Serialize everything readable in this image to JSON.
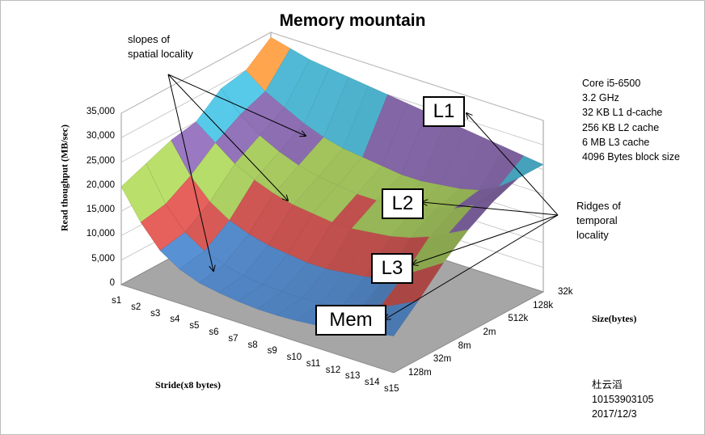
{
  "chart_data": {
    "type": "surface",
    "title": "Memory mountain",
    "ylabel": "Read thoughput (MB/sec)",
    "xlabel": "Stride(x8 bytes)",
    "zlabel": "Size(bytes)",
    "ylim": [
      0,
      35000
    ],
    "y_ticks": [
      "0",
      "5,000",
      "10,000",
      "15,000",
      "20,000",
      "25,000",
      "30,000",
      "35,000"
    ],
    "strides": [
      "s1",
      "s2",
      "s3",
      "s4",
      "s5",
      "s6",
      "s7",
      "s8",
      "s9",
      "s10",
      "s11",
      "s12",
      "s13",
      "s14",
      "s15"
    ],
    "sizes": [
      "32k",
      "128k",
      "512k",
      "2m",
      "8m",
      "32m",
      "128m"
    ],
    "series": [
      {
        "name": "32k",
        "values": [
          34000,
          33000,
          32000,
          31500,
          31000,
          30500,
          30000,
          29500,
          29000,
          28500,
          28000,
          27500,
          27000,
          26500,
          26000
        ]
      },
      {
        "name": "128k",
        "values": [
          30000,
          27000,
          25000,
          23000,
          21500,
          20500,
          20000,
          19500,
          19000,
          19000,
          19500,
          20000,
          21000,
          23000,
          26000
        ]
      },
      {
        "name": "512k",
        "values": [
          29000,
          25000,
          22000,
          20000,
          18500,
          17500,
          17000,
          16500,
          16500,
          17000,
          17500,
          18500,
          20000,
          22000,
          24000
        ]
      },
      {
        "name": "2m",
        "values": [
          25000,
          22000,
          19000,
          17000,
          15500,
          14500,
          14000,
          13500,
          13500,
          14000,
          14500,
          15500,
          17000,
          19000,
          21000
        ]
      },
      {
        "name": "8m",
        "values": [
          24000,
          18000,
          14000,
          11500,
          10000,
          9000,
          8500,
          8000,
          8000,
          8500,
          9000,
          10000,
          12000,
          14500,
          17000
        ]
      },
      {
        "name": "32m",
        "values": [
          22000,
          15000,
          10500,
          8000,
          6500,
          5500,
          5000,
          4800,
          4800,
          5000,
          5500,
          6500,
          8000,
          10000,
          12000
        ]
      },
      {
        "name": "128m",
        "values": [
          20000,
          14000,
          9500,
          7000,
          5500,
          4800,
          4300,
          4000,
          4000,
          4200,
          4600,
          5200,
          6000,
          6800,
          7500
        ]
      }
    ],
    "bands": [
      {
        "max": 5000,
        "color": "#4f81bd"
      },
      {
        "max": 10000,
        "color": "#4f81bd"
      },
      {
        "max": 15000,
        "color": "#c0504d"
      },
      {
        "max": 20000,
        "color": "#9bbb59"
      },
      {
        "max": 25000,
        "color": "#8064a2"
      },
      {
        "max": 30000,
        "color": "#4bacc6"
      },
      {
        "max": 35000,
        "color": "#f79646"
      }
    ]
  },
  "annotations": {
    "spatial_line1": "slopes of",
    "spatial_line2": "spatial locality",
    "temporal_line1": "Ridges of",
    "temporal_line2": "temporal",
    "temporal_line3": "locality"
  },
  "specs": [
    "Core i5-6500",
    "3.2 GHz",
    "32 KB L1 d-cache",
    "256 KB L2 cache",
    "6 MB L3 cache",
    "4096 Bytes block size"
  ],
  "labels": {
    "l1": "L1",
    "l2": "L2",
    "l3": "L3",
    "mem": "Mem"
  },
  "signature": {
    "name": "杜云滔",
    "id": "10153903105",
    "date": "2017/12/3"
  }
}
